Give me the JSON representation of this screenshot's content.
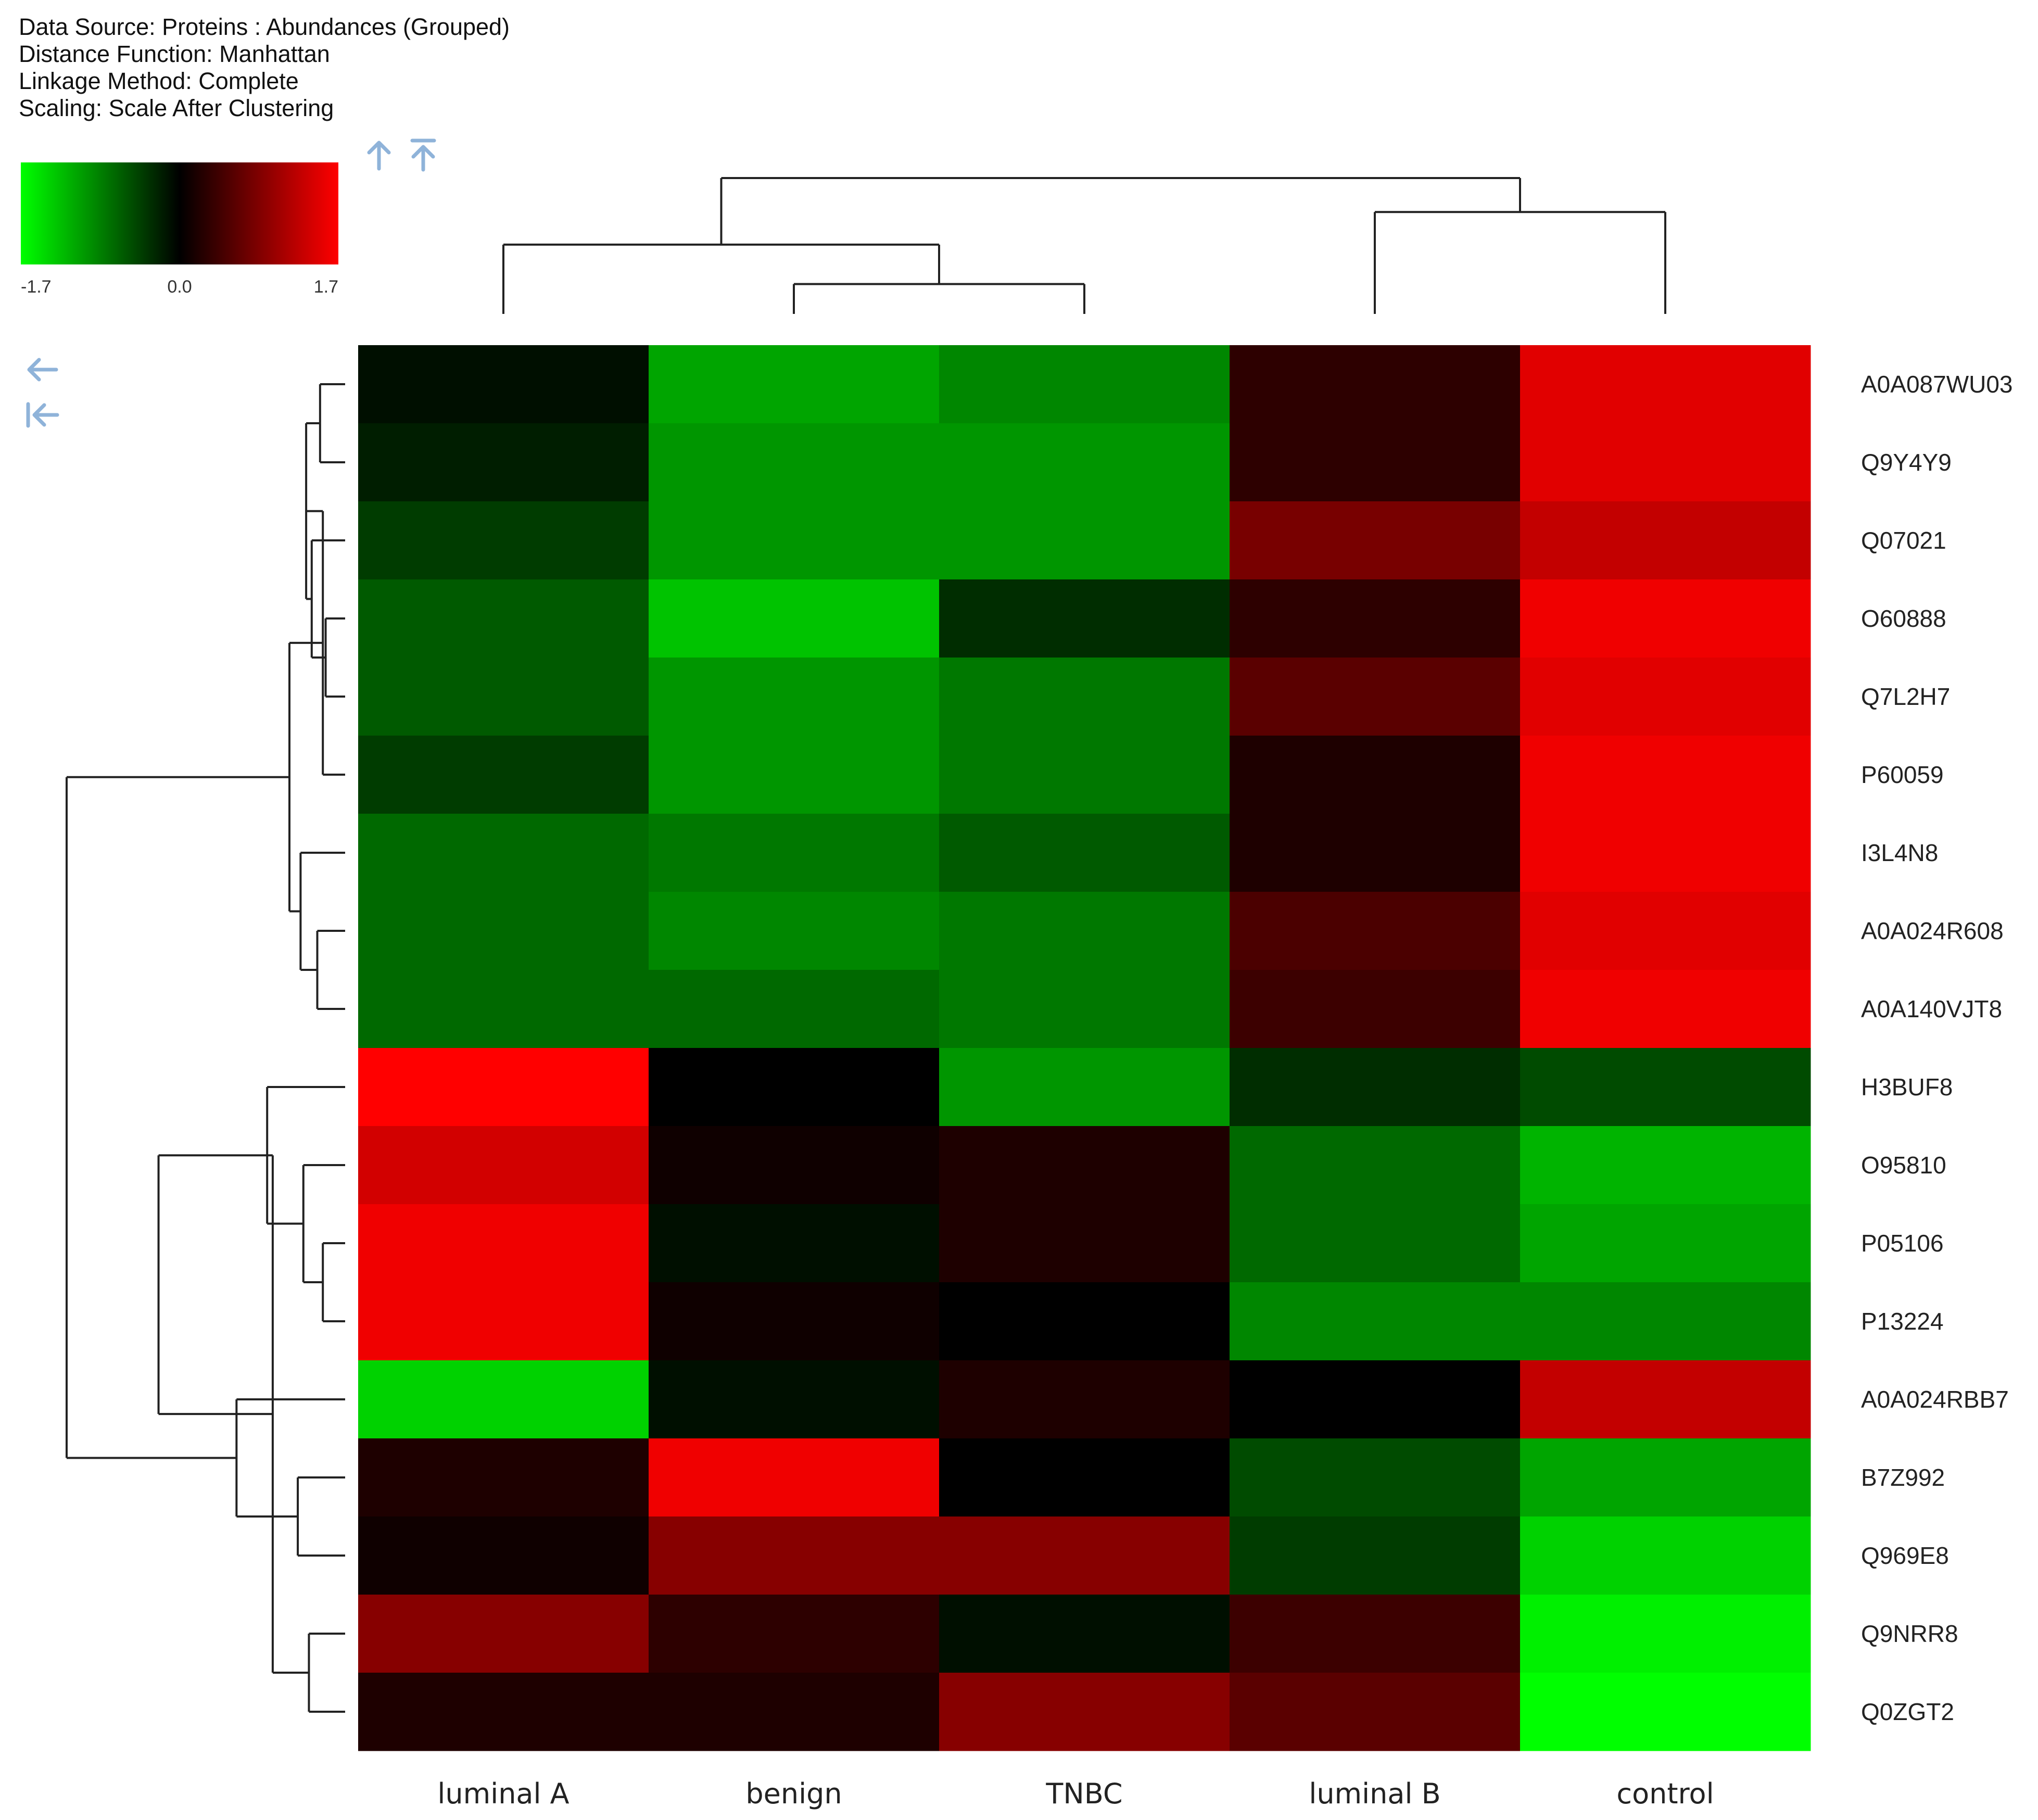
{
  "header": {
    "data_source": "Data Source: Proteins : Abundances (Grouped)",
    "distance_function": "Distance Function: Manhattan",
    "linkage_method": "Linkage Method: Complete",
    "scaling": "Scaling: Scale After Clustering"
  },
  "color_scale": {
    "min": -1.7,
    "mid": 0.0,
    "max": 1.7,
    "min_label": "-1.7",
    "mid_label": "0.0",
    "max_label": "1.7",
    "low_color": "#00ff00",
    "mid_color": "#000000",
    "high_color": "#ff0000"
  },
  "icons": {
    "col_up": "arrow-up-icon",
    "col_top": "arrow-up-to-line-icon",
    "row_left": "arrow-left-icon",
    "row_start": "arrow-left-to-line-icon"
  },
  "chart_data": {
    "type": "heatmap",
    "title": "",
    "columns": [
      "luminal A",
      "benign",
      "TNBC",
      "luminal B",
      "control"
    ],
    "rows": [
      "A0A087WU03",
      "Q9Y4Y9",
      "Q07021",
      "O60888",
      "Q7L2H7",
      "P60059",
      "I3L4N8",
      "A0A024R608",
      "A0A140VJT8",
      "H3BUF8",
      "O95810",
      "P05106",
      "P13224",
      "A0A024RBB7",
      "B7Z992",
      "Q969E8",
      "Q9NRR8",
      "Q0ZGT2"
    ],
    "values": [
      [
        -0.1,
        -1.1,
        -0.9,
        0.3,
        1.5
      ],
      [
        -0.2,
        -1.0,
        -1.0,
        0.3,
        1.5
      ],
      [
        -0.4,
        -1.0,
        -1.0,
        0.8,
        1.3
      ],
      [
        -0.6,
        -1.3,
        -0.3,
        0.3,
        1.6
      ],
      [
        -0.6,
        -1.0,
        -0.8,
        0.6,
        1.5
      ],
      [
        -0.4,
        -1.0,
        -0.8,
        0.2,
        1.6
      ],
      [
        -0.7,
        -0.8,
        -0.6,
        0.2,
        1.6
      ],
      [
        -0.7,
        -0.9,
        -0.8,
        0.5,
        1.5
      ],
      [
        -0.7,
        -0.7,
        -0.8,
        0.4,
        1.6
      ],
      [
        1.7,
        0.0,
        -1.0,
        -0.3,
        -0.5
      ],
      [
        1.4,
        0.1,
        0.2,
        -0.7,
        -1.2
      ],
      [
        1.6,
        -0.1,
        0.2,
        -0.7,
        -1.1
      ],
      [
        1.6,
        0.1,
        0.0,
        -0.9,
        -0.9
      ],
      [
        -1.4,
        -0.1,
        0.2,
        0.0,
        1.3
      ],
      [
        0.2,
        1.6,
        0.0,
        -0.5,
        -1.1
      ],
      [
        0.1,
        0.9,
        0.9,
        -0.4,
        -1.4
      ],
      [
        0.9,
        0.3,
        -0.1,
        0.4,
        -1.6
      ],
      [
        0.2,
        0.2,
        0.9,
        0.6,
        -1.7
      ]
    ],
    "column_dendrogram": {
      "leaves": [
        0,
        1,
        2,
        3,
        4
      ],
      "merges": [
        [
          1,
          2,
          0.22
        ],
        [
          0,
          5,
          0.51
        ],
        [
          3,
          4,
          0.75
        ],
        [
          6,
          7,
          1.0
        ]
      ]
    },
    "row_dendrogram": {
      "leaves": [
        0,
        1,
        2,
        3,
        4,
        5,
        6,
        7,
        8,
        9,
        10,
        11,
        12,
        13,
        14,
        15,
        16,
        17
      ],
      "merges": [
        [
          0,
          1,
          0.09
        ],
        [
          3,
          4,
          0.07
        ],
        [
          2,
          19,
          0.12
        ],
        [
          18,
          20,
          0.14
        ],
        [
          5,
          21,
          0.08
        ],
        [
          7,
          8,
          0.1
        ],
        [
          6,
          23,
          0.16
        ],
        [
          22,
          24,
          0.2
        ],
        [
          11,
          12,
          0.08
        ],
        [
          10,
          26,
          0.15
        ],
        [
          9,
          27,
          0.28
        ],
        [
          16,
          17,
          0.13
        ],
        [
          14,
          15,
          0.17
        ],
        [
          29,
          28,
          0.26
        ],
        [
          13,
          30,
          0.39
        ],
        [
          28,
          31,
          0.67
        ],
        [
          25,
          32,
          1.0
        ]
      ]
    }
  }
}
